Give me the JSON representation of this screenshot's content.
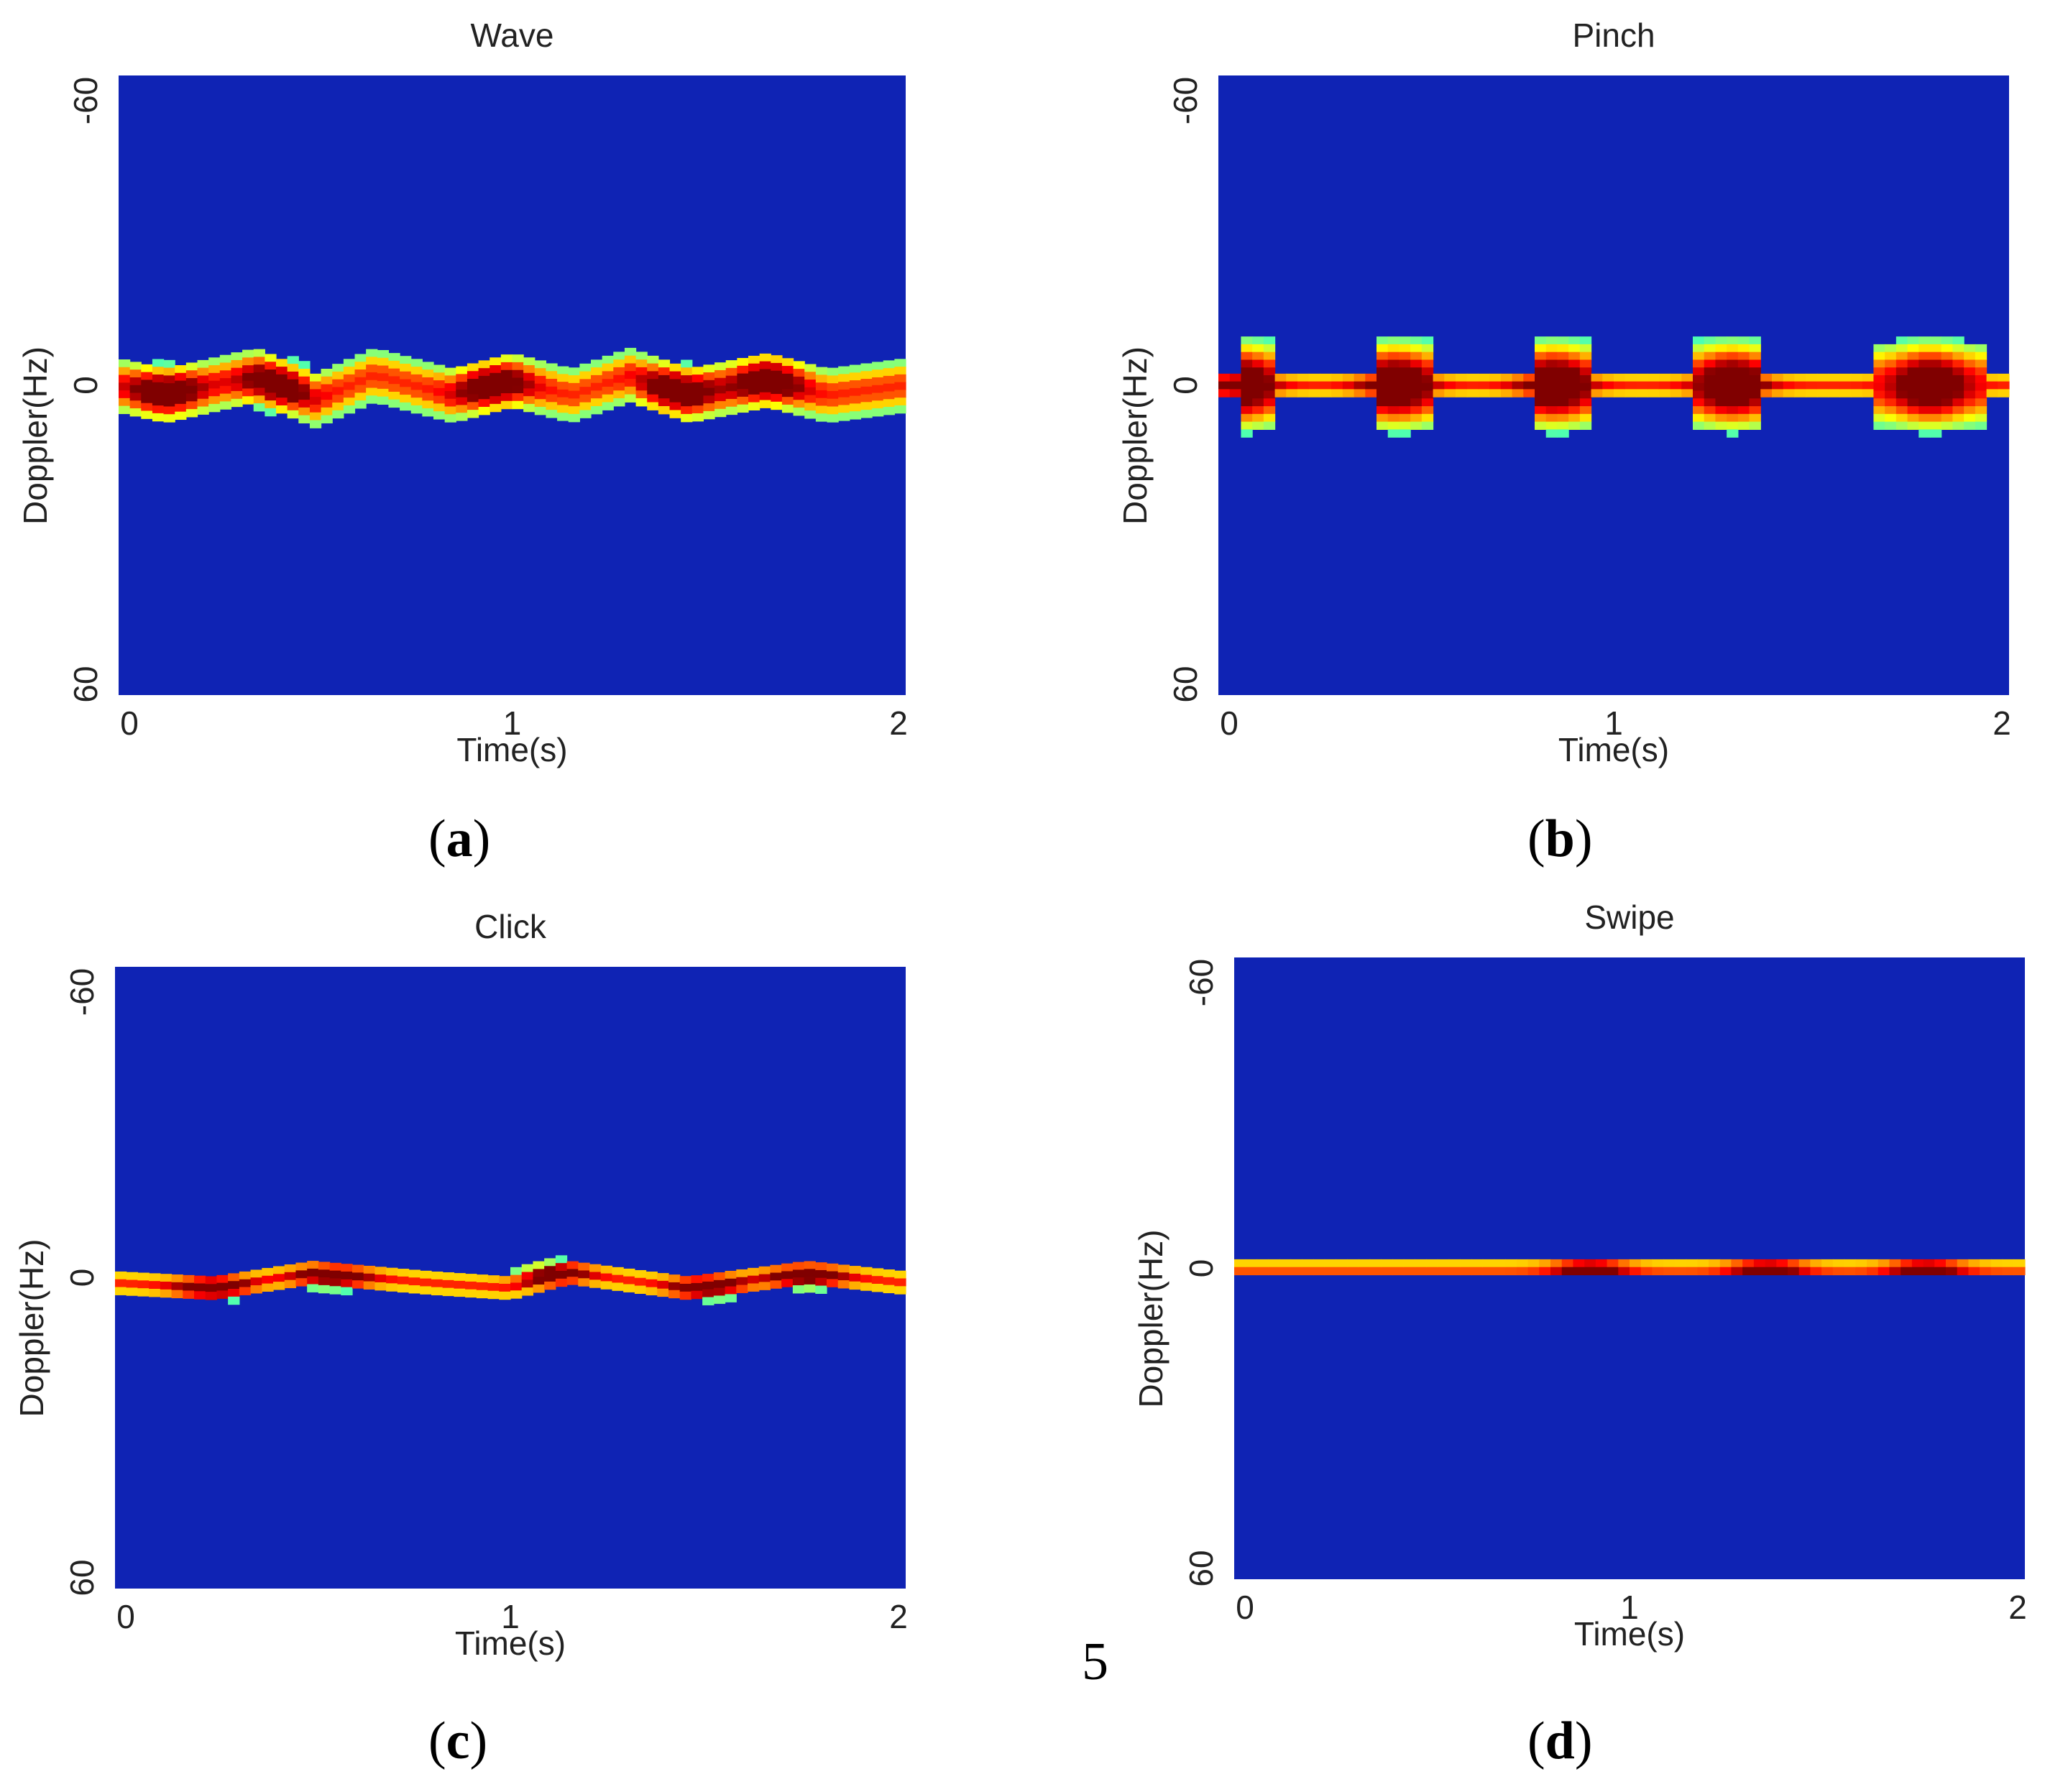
{
  "page_number": "5",
  "chart_data": [
    {
      "type": "heatmap",
      "panel": "a",
      "title": "Wave",
      "xlabel": "Time(s)",
      "ylabel": "Doppler(Hz)",
      "xlim": [
        0,
        2
      ],
      "ylim": [
        -60,
        60
      ],
      "xticks": [
        "0",
        "1",
        "2"
      ],
      "yticks": [
        "-60",
        "0",
        "60"
      ],
      "colormap": "jet",
      "background_color": "#0f23b4",
      "band": {
        "center_hz": [
          [
            0.0,
            0
          ],
          [
            0.12,
            2
          ],
          [
            0.35,
            -2
          ],
          [
            0.5,
            3
          ],
          [
            0.65,
            -2
          ],
          [
            0.85,
            2
          ],
          [
            1.0,
            -1
          ],
          [
            1.15,
            2
          ],
          [
            1.3,
            -2
          ],
          [
            1.45,
            2
          ],
          [
            1.65,
            -1
          ],
          [
            1.8,
            2
          ],
          [
            2.0,
            0
          ]
        ],
        "half_width_hz": 6,
        "hot_spots": [
          [
            0.12,
            1
          ],
          [
            0.4,
            0
          ],
          [
            0.95,
            0
          ],
          [
            1.42,
            1
          ],
          [
            1.65,
            -1
          ]
        ]
      },
      "caption_letter": "a"
    },
    {
      "type": "heatmap",
      "panel": "b",
      "title": "Pinch",
      "xlabel": "Time(s)",
      "ylabel": "Doppler(Hz)",
      "xlim": [
        0,
        2
      ],
      "ylim": [
        -60,
        60
      ],
      "xticks": [
        "0",
        "1",
        "2"
      ],
      "yticks": [
        "-60",
        "0",
        "60"
      ],
      "colormap": "jet",
      "background_color": "#0f23b4",
      "band": {
        "center_hz": [
          [
            0.0,
            0
          ],
          [
            2.0,
            0
          ]
        ],
        "half_width_hz": 3,
        "bursts": [
          [
            0.05,
            0.13
          ],
          [
            0.4,
            0.55
          ],
          [
            0.8,
            0.95
          ],
          [
            1.2,
            1.38
          ],
          [
            1.65,
            1.95
          ]
        ],
        "hot_spots": [
          [
            0.05,
            0
          ],
          [
            0.45,
            0
          ],
          [
            0.85,
            0
          ],
          [
            1.3,
            0
          ],
          [
            1.8,
            0
          ]
        ]
      },
      "caption_letter": "b"
    },
    {
      "type": "heatmap",
      "panel": "c",
      "title": "Click",
      "xlabel": "Time(s)",
      "ylabel": "Doppler(Hz)",
      "xlim": [
        0,
        2
      ],
      "ylim": [
        -60,
        60
      ],
      "xticks": [
        "0",
        "1",
        "2"
      ],
      "yticks": [
        "-60",
        "0",
        "60"
      ],
      "colormap": "jet",
      "background_color": "#0f23b4",
      "band": {
        "center_hz": [
          [
            0.0,
            1
          ],
          [
            0.25,
            2
          ],
          [
            0.5,
            -1
          ],
          [
            0.8,
            1
          ],
          [
            1.0,
            2
          ],
          [
            1.15,
            -1
          ],
          [
            1.45,
            2
          ],
          [
            1.75,
            -1
          ],
          [
            2.0,
            1
          ]
        ],
        "half_width_hz": 3,
        "hot_spots": [
          [
            0.25,
            2
          ],
          [
            0.55,
            0
          ],
          [
            1.1,
            -1
          ],
          [
            1.5,
            2
          ],
          [
            1.75,
            0
          ]
        ]
      },
      "caption_letter": "c"
    },
    {
      "type": "heatmap",
      "panel": "d",
      "title": "Swipe",
      "xlabel": "Time(s)",
      "ylabel": "Doppler(Hz)",
      "xlim": [
        0,
        2
      ],
      "ylim": [
        -60,
        60
      ],
      "xticks": [
        "0",
        "1",
        "2"
      ],
      "yticks": [
        "-60",
        "0",
        "60"
      ],
      "colormap": "jet",
      "background_color": "#0f23b4",
      "band": {
        "center_hz": [
          [
            0.0,
            0
          ],
          [
            2.0,
            0
          ]
        ],
        "half_width_hz": 2,
        "hot_spots": [
          [
            1.35,
            0
          ],
          [
            1.75,
            0
          ],
          [
            0.9,
            0
          ]
        ]
      },
      "caption_letter": "d"
    }
  ]
}
